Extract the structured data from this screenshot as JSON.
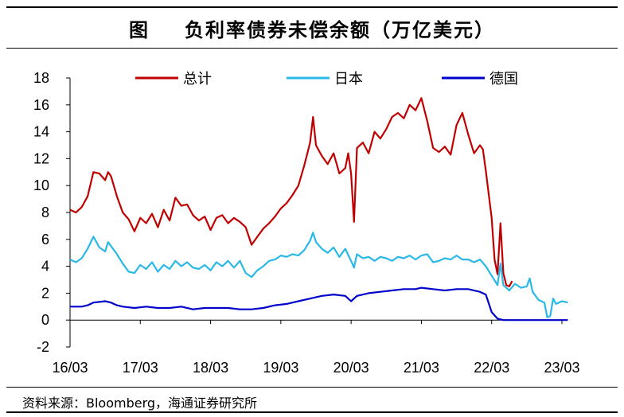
{
  "title": {
    "prefix": "图",
    "text": "负利率债券未偿余额（万亿美元）"
  },
  "source": "资料来源：Bloomberg，海通证券研究所",
  "chart_data": {
    "type": "line",
    "title": "负利率债券未偿余额（万亿美元）",
    "xlabel": "",
    "ylabel": "",
    "ylim": [
      -2,
      18
    ],
    "yticks": [
      -2,
      0,
      2,
      4,
      6,
      8,
      10,
      12,
      14,
      16,
      18
    ],
    "xlim": [
      0,
      84
    ],
    "xticks": [
      {
        "t": 0,
        "label": "16/03"
      },
      {
        "t": 12,
        "label": "17/03"
      },
      {
        "t": 24,
        "label": "18/03"
      },
      {
        "t": 36,
        "label": "19/03"
      },
      {
        "t": 48,
        "label": "20/03"
      },
      {
        "t": 60,
        "label": "21/03"
      },
      {
        "t": 72,
        "label": "22/03"
      },
      {
        "t": 84,
        "label": "23/03"
      }
    ],
    "x_unit_note": "months since 2016-03",
    "legend_position": "top",
    "grid": false,
    "series": [
      {
        "name": "总计",
        "color": "#C00000",
        "points": [
          [
            0,
            8.2
          ],
          [
            1,
            8.0
          ],
          [
            2,
            8.4
          ],
          [
            3,
            9.2
          ],
          [
            4,
            11.0
          ],
          [
            5,
            10.9
          ],
          [
            6,
            10.4
          ],
          [
            6.5,
            11.0
          ],
          [
            7,
            10.7
          ],
          [
            8,
            9.2
          ],
          [
            9,
            8.0
          ],
          [
            10,
            7.5
          ],
          [
            11,
            6.6
          ],
          [
            12,
            7.6
          ],
          [
            13,
            7.2
          ],
          [
            14,
            7.9
          ],
          [
            15,
            6.9
          ],
          [
            16,
            8.2
          ],
          [
            17,
            7.4
          ],
          [
            18,
            9.1
          ],
          [
            19,
            8.5
          ],
          [
            20,
            8.6
          ],
          [
            21,
            7.8
          ],
          [
            22,
            7.4
          ],
          [
            23,
            7.7
          ],
          [
            24,
            6.7
          ],
          [
            25,
            7.6
          ],
          [
            26,
            7.8
          ],
          [
            27,
            7.2
          ],
          [
            28,
            7.6
          ],
          [
            29,
            7.3
          ],
          [
            30,
            6.9
          ],
          [
            31,
            5.6
          ],
          [
            32,
            6.2
          ],
          [
            33,
            6.8
          ],
          [
            34,
            7.2
          ],
          [
            35,
            7.7
          ],
          [
            36,
            8.3
          ],
          [
            37,
            8.7
          ],
          [
            38,
            9.3
          ],
          [
            39,
            10.0
          ],
          [
            40,
            11.5
          ],
          [
            41,
            13.2
          ],
          [
            41.5,
            15.1
          ],
          [
            42,
            13.0
          ],
          [
            43,
            12.2
          ],
          [
            44,
            11.6
          ],
          [
            45,
            12.4
          ],
          [
            46,
            10.9
          ],
          [
            47,
            11.3
          ],
          [
            47.5,
            12.4
          ],
          [
            48,
            10.9
          ],
          [
            48.5,
            7.3
          ],
          [
            49,
            12.8
          ],
          [
            50,
            13.2
          ],
          [
            51,
            12.4
          ],
          [
            52,
            14.0
          ],
          [
            53,
            13.5
          ],
          [
            54,
            14.2
          ],
          [
            55,
            15.1
          ],
          [
            56,
            15.4
          ],
          [
            57,
            15.0
          ],
          [
            58,
            16.0
          ],
          [
            59,
            15.6
          ],
          [
            60,
            16.5
          ],
          [
            61,
            14.8
          ],
          [
            62,
            12.8
          ],
          [
            63,
            12.5
          ],
          [
            64,
            12.9
          ],
          [
            65,
            12.3
          ],
          [
            66,
            14.5
          ],
          [
            67,
            15.4
          ],
          [
            68,
            13.8
          ],
          [
            69,
            12.4
          ],
          [
            70,
            13.0
          ],
          [
            70.5,
            12.7
          ],
          [
            71,
            11.1
          ],
          [
            72,
            7.6
          ],
          [
            72.5,
            4.5
          ],
          [
            73,
            3.4
          ],
          [
            73.5,
            7.2
          ],
          [
            74,
            3.5
          ],
          [
            74.5,
            2.6
          ],
          [
            75,
            2.5
          ],
          [
            75.5,
            2.9
          ]
        ]
      },
      {
        "name": "日本",
        "color": "#29B8E8",
        "points": [
          [
            0,
            4.5
          ],
          [
            1,
            4.3
          ],
          [
            2,
            4.6
          ],
          [
            3,
            5.3
          ],
          [
            4,
            6.2
          ],
          [
            5,
            5.4
          ],
          [
            6,
            5.1
          ],
          [
            6.5,
            5.8
          ],
          [
            7,
            5.5
          ],
          [
            8,
            4.9
          ],
          [
            9,
            4.2
          ],
          [
            10,
            3.6
          ],
          [
            11,
            3.5
          ],
          [
            12,
            4.1
          ],
          [
            13,
            3.8
          ],
          [
            14,
            4.3
          ],
          [
            15,
            3.6
          ],
          [
            16,
            4.1
          ],
          [
            17,
            3.8
          ],
          [
            18,
            4.4
          ],
          [
            19,
            4.0
          ],
          [
            20,
            4.3
          ],
          [
            21,
            3.9
          ],
          [
            22,
            3.8
          ],
          [
            23,
            4.1
          ],
          [
            24,
            3.7
          ],
          [
            25,
            4.3
          ],
          [
            26,
            4.0
          ],
          [
            27,
            4.4
          ],
          [
            28,
            3.9
          ],
          [
            29,
            4.4
          ],
          [
            30,
            3.5
          ],
          [
            31,
            3.2
          ],
          [
            32,
            3.7
          ],
          [
            33,
            4.0
          ],
          [
            34,
            4.4
          ],
          [
            35,
            4.5
          ],
          [
            36,
            4.8
          ],
          [
            37,
            4.7
          ],
          [
            38,
            4.9
          ],
          [
            39,
            4.8
          ],
          [
            40,
            5.2
          ],
          [
            41,
            5.9
          ],
          [
            41.5,
            6.5
          ],
          [
            42,
            5.8
          ],
          [
            43,
            5.3
          ],
          [
            44,
            5.0
          ],
          [
            45,
            5.4
          ],
          [
            46,
            4.7
          ],
          [
            47,
            5.3
          ],
          [
            48,
            4.4
          ],
          [
            48.5,
            3.9
          ],
          [
            49,
            4.9
          ],
          [
            50,
            4.6
          ],
          [
            51,
            4.7
          ],
          [
            52,
            4.4
          ],
          [
            53,
            4.7
          ],
          [
            54,
            4.6
          ],
          [
            55,
            4.4
          ],
          [
            56,
            4.7
          ],
          [
            57,
            4.6
          ],
          [
            58,
            4.8
          ],
          [
            59,
            4.5
          ],
          [
            60,
            4.8
          ],
          [
            61,
            4.9
          ],
          [
            62,
            4.3
          ],
          [
            63,
            4.4
          ],
          [
            64,
            4.6
          ],
          [
            65,
            4.5
          ],
          [
            66,
            4.8
          ],
          [
            67,
            4.5
          ],
          [
            68,
            4.5
          ],
          [
            69,
            4.3
          ],
          [
            70,
            4.5
          ],
          [
            71,
            4.0
          ],
          [
            72,
            3.3
          ],
          [
            73,
            2.6
          ],
          [
            73.5,
            4.2
          ],
          [
            74,
            2.6
          ],
          [
            75,
            2.2
          ],
          [
            76,
            2.7
          ],
          [
            77,
            2.4
          ],
          [
            78,
            2.5
          ],
          [
            78.5,
            3.1
          ],
          [
            79,
            2.1
          ],
          [
            80,
            1.5
          ],
          [
            81,
            1.3
          ],
          [
            81.5,
            0.2
          ],
          [
            82,
            0.3
          ],
          [
            82.5,
            1.6
          ],
          [
            83,
            1.2
          ],
          [
            84,
            1.4
          ],
          [
            85,
            1.3
          ]
        ]
      },
      {
        "name": "德国",
        "color": "#0000CC",
        "points": [
          [
            0,
            1.0
          ],
          [
            2,
            1.0
          ],
          [
            3,
            1.1
          ],
          [
            4,
            1.3
          ],
          [
            6,
            1.4
          ],
          [
            7,
            1.3
          ],
          [
            8,
            1.1
          ],
          [
            9,
            1.0
          ],
          [
            11,
            0.9
          ],
          [
            13,
            1.0
          ],
          [
            15,
            0.9
          ],
          [
            17,
            0.9
          ],
          [
            19,
            1.0
          ],
          [
            21,
            0.8
          ],
          [
            23,
            0.9
          ],
          [
            25,
            0.9
          ],
          [
            27,
            0.9
          ],
          [
            29,
            0.8
          ],
          [
            31,
            0.8
          ],
          [
            33,
            0.9
          ],
          [
            35,
            1.1
          ],
          [
            37,
            1.2
          ],
          [
            39,
            1.4
          ],
          [
            41,
            1.6
          ],
          [
            43,
            1.8
          ],
          [
            45,
            1.9
          ],
          [
            47,
            1.8
          ],
          [
            48,
            1.4
          ],
          [
            49,
            1.8
          ],
          [
            51,
            2.0
          ],
          [
            53,
            2.1
          ],
          [
            55,
            2.2
          ],
          [
            57,
            2.3
          ],
          [
            59,
            2.3
          ],
          [
            60,
            2.4
          ],
          [
            62,
            2.3
          ],
          [
            64,
            2.2
          ],
          [
            66,
            2.3
          ],
          [
            68,
            2.3
          ],
          [
            70,
            2.1
          ],
          [
            71,
            1.9
          ],
          [
            72,
            0.6
          ],
          [
            73,
            0.1
          ],
          [
            74,
            0.0
          ],
          [
            76,
            0.0
          ],
          [
            80,
            0.0
          ],
          [
            84,
            0.0
          ],
          [
            85,
            0.0
          ]
        ]
      }
    ]
  }
}
